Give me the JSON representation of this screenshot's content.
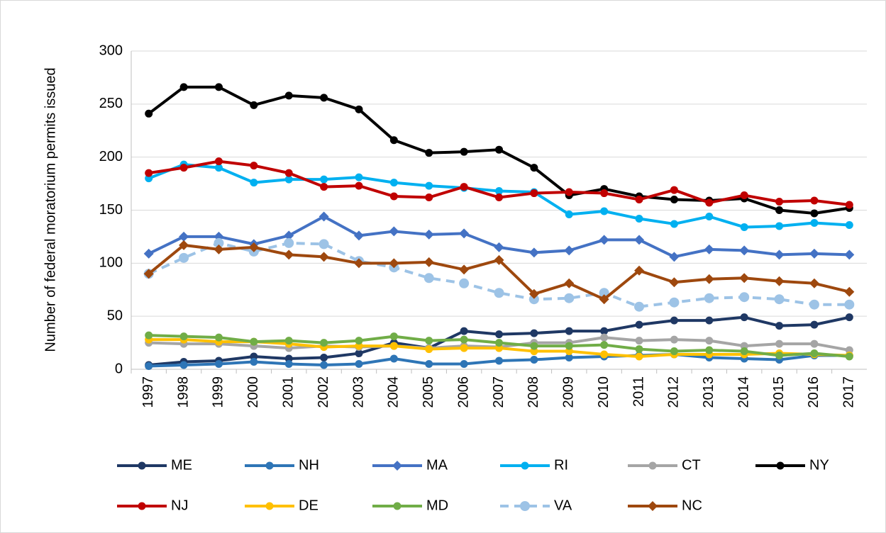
{
  "chart_data": {
    "type": "line",
    "y_label": "Number of federal moratorium permits issued",
    "categories": [
      "1997",
      "1998",
      "1999",
      "2000",
      "2001",
      "2002",
      "2003",
      "2004",
      "2005",
      "2006",
      "2007",
      "2008",
      "2009",
      "2010",
      "2011",
      "2012",
      "2013",
      "2014",
      "2015",
      "2016",
      "2017"
    ],
    "ylim": [
      0,
      300
    ],
    "yticks": [
      0,
      50,
      100,
      150,
      200,
      250,
      300
    ],
    "grid": true,
    "legend": "bottom",
    "series": [
      {
        "name": "ME",
        "color": "#1f3864",
        "marker": "circle",
        "values": [
          4,
          7,
          8,
          12,
          10,
          11,
          15,
          25,
          20,
          36,
          33,
          34,
          36,
          36,
          42,
          46,
          46,
          49,
          41,
          42,
          49
        ]
      },
      {
        "name": "NH",
        "color": "#2e75b6",
        "marker": "circle",
        "values": [
          3,
          4,
          5,
          7,
          5,
          4,
          5,
          10,
          5,
          5,
          8,
          9,
          11,
          12,
          13,
          14,
          11,
          10,
          9,
          13,
          13
        ]
      },
      {
        "name": "MA",
        "color": "#4472c4",
        "marker": "diamond",
        "values": [
          109,
          125,
          125,
          118,
          126,
          144,
          126,
          130,
          127,
          128,
          115,
          110,
          112,
          122,
          122,
          106,
          113,
          112,
          108,
          109,
          108
        ]
      },
      {
        "name": "RI",
        "color": "#00b0f0",
        "marker": "circle",
        "values": [
          180,
          193,
          190,
          176,
          179,
          179,
          181,
          176,
          173,
          171,
          168,
          167,
          146,
          149,
          142,
          137,
          144,
          134,
          135,
          138,
          136
        ]
      },
      {
        "name": "CT",
        "color": "#a5a5a5",
        "marker": "circle",
        "values": [
          25,
          24,
          24,
          22,
          20,
          22,
          21,
          22,
          20,
          22,
          21,
          25,
          25,
          30,
          27,
          28,
          27,
          22,
          24,
          24,
          18
        ]
      },
      {
        "name": "NY",
        "color": "#000000",
        "marker": "circle",
        "values": [
          241,
          266,
          266,
          249,
          258,
          256,
          245,
          216,
          204,
          205,
          207,
          190,
          164,
          170,
          163,
          160,
          159,
          161,
          150,
          147,
          152
        ]
      },
      {
        "name": "NJ",
        "color": "#c00000",
        "marker": "circle",
        "values": [
          185,
          190,
          196,
          192,
          185,
          172,
          173,
          163,
          162,
          172,
          162,
          166,
          167,
          166,
          160,
          169,
          157,
          164,
          158,
          159,
          155
        ]
      },
      {
        "name": "DE",
        "color": "#ffc000",
        "marker": "circle",
        "values": [
          28,
          28,
          26,
          26,
          24,
          21,
          22,
          22,
          19,
          20,
          20,
          17,
          17,
          14,
          12,
          14,
          14,
          14,
          15,
          14,
          13
        ]
      },
      {
        "name": "MD",
        "color": "#70ad47",
        "marker": "circle",
        "values": [
          32,
          31,
          30,
          26,
          27,
          25,
          27,
          31,
          27,
          28,
          25,
          22,
          22,
          23,
          19,
          17,
          18,
          17,
          13,
          15,
          12
        ]
      },
      {
        "name": "VA",
        "color": "#9dc3e6",
        "marker": "circle",
        "dashed": true,
        "values": [
          90,
          105,
          119,
          111,
          119,
          118,
          102,
          96,
          86,
          81,
          72,
          66,
          67,
          72,
          59,
          63,
          67,
          68,
          66,
          61,
          61
        ]
      },
      {
        "name": "NC",
        "color": "#9e480e",
        "marker": "diamond",
        "values": [
          90,
          117,
          113,
          115,
          108,
          106,
          100,
          100,
          101,
          94,
          103,
          71,
          81,
          66,
          93,
          82,
          85,
          86,
          83,
          81,
          73
        ]
      }
    ]
  }
}
